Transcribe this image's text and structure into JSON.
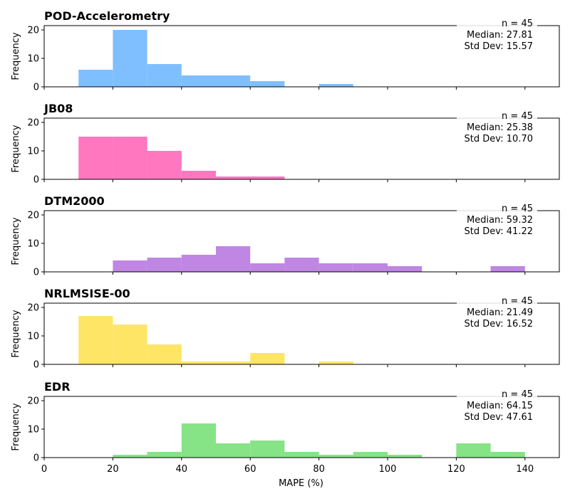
{
  "chart_data": [
    {
      "type": "bar",
      "title": "POD-Accelerometry",
      "ylabel": "Frequency",
      "xlabel": "",
      "color": "#80bfff",
      "bin_width": 10,
      "bin_starts": [
        10,
        20,
        30,
        40,
        50,
        60,
        80
      ],
      "values": [
        6,
        20,
        8,
        4,
        4,
        2,
        1
      ],
      "stats": [
        "n = 45",
        "Median: 27.81",
        "Std Dev: 15.57"
      ],
      "xlim": [
        0,
        150
      ],
      "ylim": [
        0,
        21.5
      ],
      "xticks": [
        0,
        20,
        40,
        60,
        80,
        100,
        120,
        140
      ],
      "yticks": [
        "0",
        "10",
        "20"
      ]
    },
    {
      "type": "bar",
      "title": "JB08",
      "ylabel": "Frequency",
      "xlabel": "",
      "color": "#ff77bf",
      "bin_width": 10,
      "bin_starts": [
        10,
        20,
        30,
        40,
        50,
        60
      ],
      "values": [
        15,
        15,
        10,
        3,
        1,
        1
      ],
      "stats": [
        "n = 45",
        "Median: 25.38",
        "Std Dev: 10.70"
      ],
      "xlim": [
        0,
        150
      ],
      "ylim": [
        0,
        21.5
      ],
      "xticks": [
        0,
        20,
        40,
        60,
        80,
        100,
        120,
        140
      ],
      "yticks": [
        "0",
        "10",
        "20"
      ]
    },
    {
      "type": "bar",
      "title": "DTM2000",
      "ylabel": "Frequency",
      "xlabel": "",
      "color": "#bf86e3",
      "bin_width": 10,
      "bin_starts": [
        20,
        30,
        40,
        50,
        60,
        70,
        80,
        90,
        100,
        130
      ],
      "values": [
        4,
        5,
        6,
        9,
        3,
        5,
        3,
        3,
        2,
        2
      ],
      "stats": [
        "n = 45",
        "Median: 59.32",
        "Std Dev: 41.22"
      ],
      "xlim": [
        0,
        150
      ],
      "ylim": [
        0,
        21.5
      ],
      "xticks": [
        0,
        20,
        40,
        60,
        80,
        100,
        120,
        140
      ],
      "yticks": [
        "0",
        "10",
        "20"
      ]
    },
    {
      "type": "bar",
      "title": "NRLMSISE-00",
      "ylabel": "Frequency",
      "xlabel": "",
      "color": "#ffe566",
      "bin_width": 10,
      "bin_starts": [
        10,
        20,
        30,
        40,
        50,
        60,
        80
      ],
      "values": [
        17,
        14,
        7,
        1,
        1,
        4,
        1
      ],
      "stats": [
        "n = 45",
        "Median: 21.49",
        "Std Dev: 16.52"
      ],
      "xlim": [
        0,
        150
      ],
      "ylim": [
        0,
        21.5
      ],
      "xticks": [
        0,
        20,
        40,
        60,
        80,
        100,
        120,
        140
      ],
      "yticks": [
        "0",
        "10",
        "20"
      ]
    },
    {
      "type": "bar",
      "title": "EDR",
      "ylabel": "Frequency",
      "xlabel": "MAPE (%)",
      "color": "#86e386",
      "bin_width": 10,
      "bin_starts": [
        20,
        30,
        40,
        50,
        60,
        70,
        80,
        90,
        100,
        120,
        130
      ],
      "values": [
        1,
        2,
        12,
        5,
        6,
        2,
        1,
        2,
        1,
        5,
        2
      ],
      "stats": [
        "n = 45",
        "Median: 64.15",
        "Std Dev: 47.61"
      ],
      "xlim": [
        0,
        150
      ],
      "ylim": [
        0,
        21.5
      ],
      "xticks": [
        0,
        20,
        40,
        60,
        80,
        100,
        120,
        140
      ],
      "yticks": [
        "0",
        "10",
        "20"
      ]
    }
  ]
}
